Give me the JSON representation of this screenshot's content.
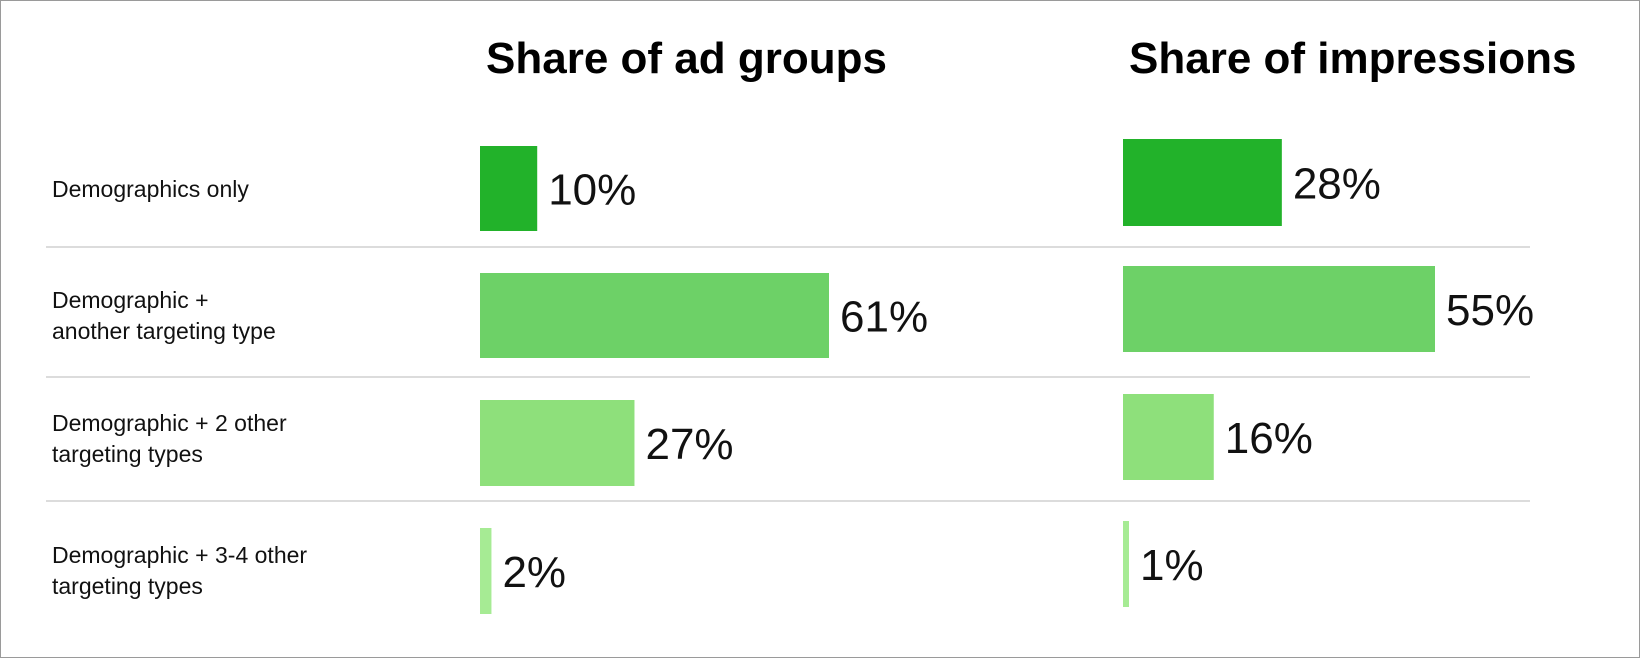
{
  "chart_data": [
    {
      "type": "bar",
      "orientation": "horizontal",
      "title": "Share of ad groups",
      "categories": [
        "Demographics only",
        "Demographic +\nanother targeting type",
        "Demographic + 2 other\ntargeting types",
        "Demographic + 3-4 other\ntargeting types"
      ],
      "values": [
        10,
        61,
        27,
        2
      ],
      "labels": [
        "10%",
        "61%",
        "27%",
        "2%"
      ],
      "colors": [
        "#22b22a",
        "#6dd167",
        "#8ee07b",
        "#a6eb94"
      ],
      "xlim": [
        0,
        61
      ]
    },
    {
      "type": "bar",
      "orientation": "horizontal",
      "title": "Share of impressions",
      "categories": [
        "Demographics only",
        "Demographic +\nanother targeting type",
        "Demographic + 2 other\ntargeting types",
        "Demographic + 3-4 other\ntargeting types"
      ],
      "values": [
        28,
        55,
        16,
        1
      ],
      "labels": [
        "28%",
        "55%",
        "16%",
        "1%"
      ],
      "colors": [
        "#22b22a",
        "#6dd167",
        "#8ee07b",
        "#a6eb94"
      ],
      "xlim": [
        0,
        55
      ]
    }
  ]
}
